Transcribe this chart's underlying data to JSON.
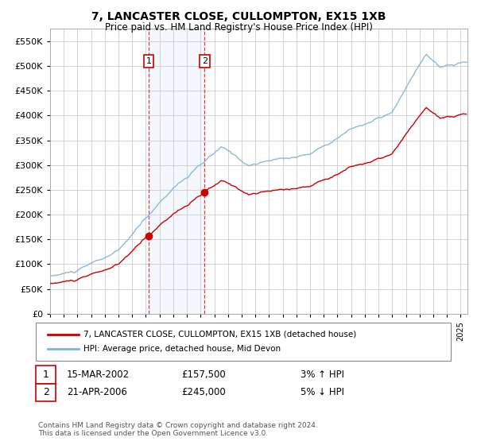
{
  "title": "7, LANCASTER CLOSE, CULLOMPTON, EX15 1XB",
  "subtitle": "Price paid vs. HM Land Registry's House Price Index (HPI)",
  "legend_line1": "7, LANCASTER CLOSE, CULLOMPTON, EX15 1XB (detached house)",
  "legend_line2": "HPI: Average price, detached house, Mid Devon",
  "transaction1_date": "15-MAR-2002",
  "transaction1_price": "£157,500",
  "transaction1_hpi": "3% ↑ HPI",
  "transaction1_year": 2002.2,
  "transaction1_value": 157500,
  "transaction2_date": "21-APR-2006",
  "transaction2_price": "£245,000",
  "transaction2_hpi": "5% ↓ HPI",
  "transaction2_year": 2006.29,
  "transaction2_value": 245000,
  "ylim": [
    0,
    575000
  ],
  "yticks": [
    0,
    50000,
    100000,
    150000,
    200000,
    250000,
    300000,
    350000,
    400000,
    450000,
    500000,
    550000
  ],
  "background_color": "#ffffff",
  "plot_bg_color": "#ffffff",
  "grid_color": "#cccccc",
  "hpi_line_color": "#7fb3d3",
  "sale_line_color": "#cc0000",
  "footnote": "Contains HM Land Registry data © Crown copyright and database right 2024.\nThis data is licensed under the Open Government Licence v3.0."
}
